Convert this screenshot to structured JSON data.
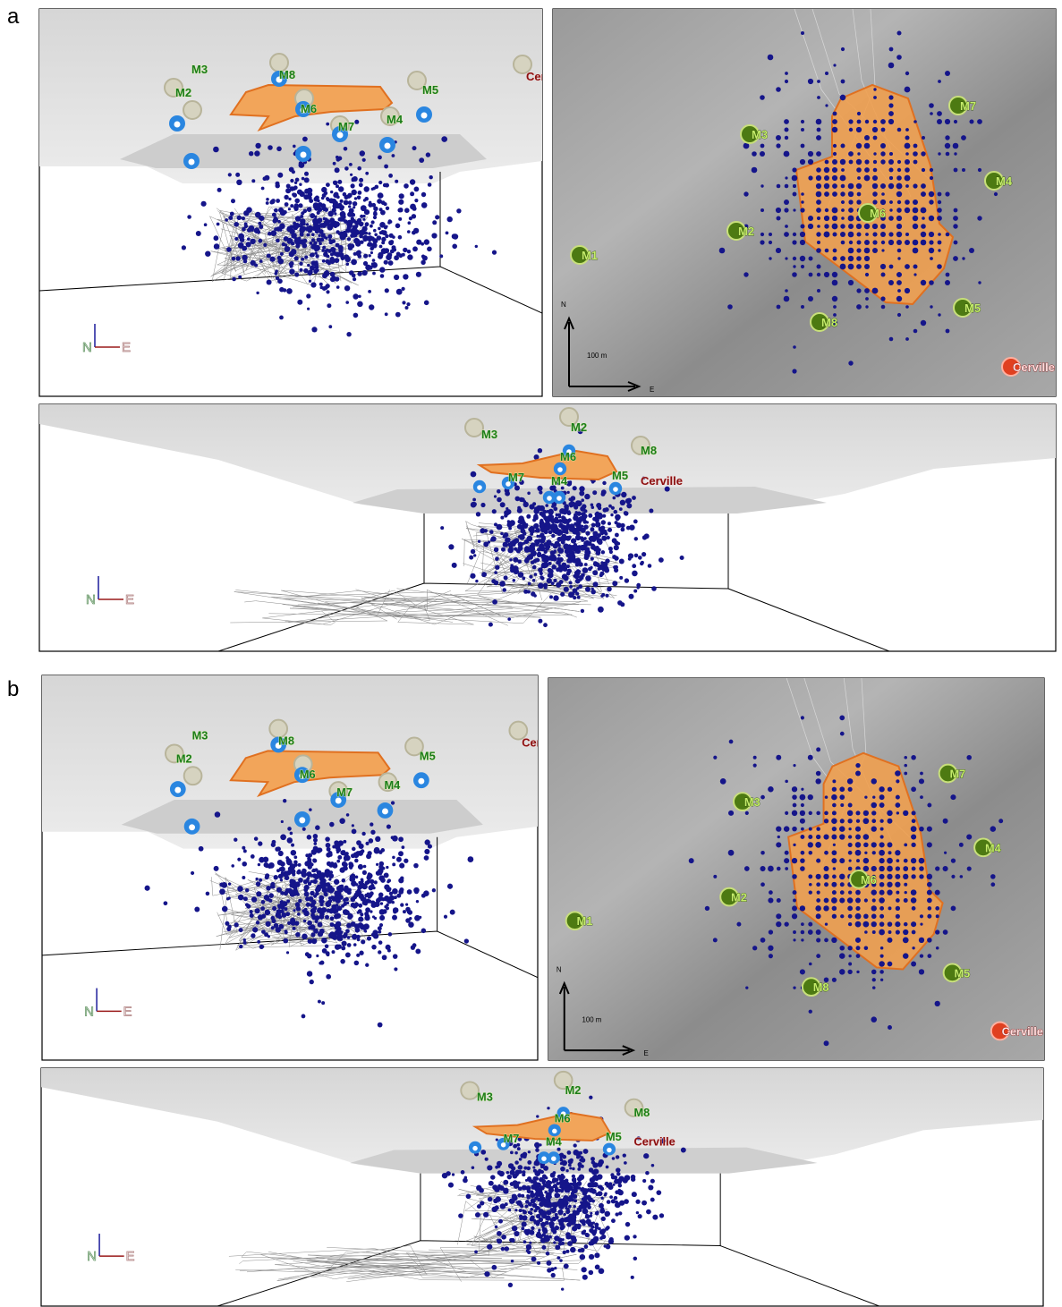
{
  "panels": [
    {
      "label": "a",
      "side_view": {
        "stations": [
          "M3",
          "M2",
          "M8",
          "M6",
          "M7",
          "M4",
          "M5",
          "Cerville"
        ],
        "north": "N",
        "east": "E"
      },
      "plan_view": {
        "stations": [
          "M1",
          "M2",
          "M3",
          "M6",
          "M7",
          "M4",
          "M5",
          "M8",
          "Cerville"
        ],
        "north": "N",
        "east": "E",
        "scale": "100 m"
      },
      "front_view": {
        "stations": [
          "M3",
          "M2",
          "M8",
          "M6",
          "M7",
          "M4",
          "M5",
          "Cerville"
        ],
        "north": "N",
        "east": "E"
      }
    },
    {
      "label": "b",
      "side_view": {
        "stations": [
          "M3",
          "M2",
          "M8",
          "M6",
          "M7",
          "M4",
          "M5",
          "Cerville"
        ],
        "north": "N",
        "east": "E"
      },
      "plan_view": {
        "stations": [
          "M1",
          "M2",
          "M3",
          "M6",
          "M7",
          "M4",
          "M5",
          "M8",
          "Cerville"
        ],
        "north": "N",
        "east": "E",
        "scale": "100 m"
      },
      "front_view": {
        "stations": [
          "M3",
          "M2",
          "M8",
          "M6",
          "M7",
          "M4",
          "M5",
          "Cerville"
        ],
        "north": "N",
        "east": "E"
      }
    }
  ]
}
